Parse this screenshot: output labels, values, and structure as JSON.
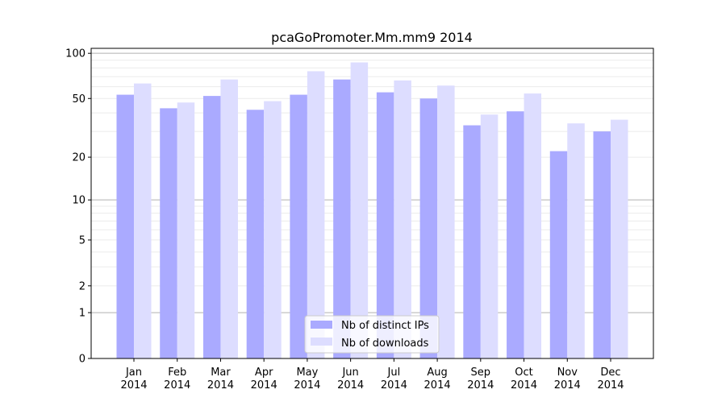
{
  "chart_data": {
    "type": "bar",
    "title": "pcaGoPromoter.Mm.mm9 2014",
    "xlabel": "",
    "ylabel": "",
    "yscale": "symlog (log10(1+y))",
    "ylim": [
      0,
      110
    ],
    "yticks": [
      0,
      1,
      2,
      5,
      10,
      20,
      50,
      100
    ],
    "ytick_labels": [
      "0",
      "1",
      "2",
      "5",
      "10",
      "20",
      "50",
      "100"
    ],
    "categories": [
      "Jan\n2014",
      "Feb\n2014",
      "Mar\n2014",
      "Apr\n2014",
      "May\n2014",
      "Jun\n2014",
      "Jul\n2014",
      "Aug\n2014",
      "Sep\n2014",
      "Oct\n2014",
      "Nov\n2014",
      "Dec\n2014"
    ],
    "series": [
      {
        "name": "Nb of distinct IPs",
        "color": "#aaaaff",
        "values": [
          53,
          43,
          52,
          42,
          53,
          67,
          55,
          50,
          33,
          41,
          22,
          30
        ]
      },
      {
        "name": "Nb of downloads",
        "color": "#ddddff",
        "values": [
          63,
          47,
          67,
          48,
          76,
          87,
          66,
          61,
          39,
          54,
          34,
          36
        ]
      }
    ],
    "grid": true,
    "legend": "bottom-center"
  }
}
